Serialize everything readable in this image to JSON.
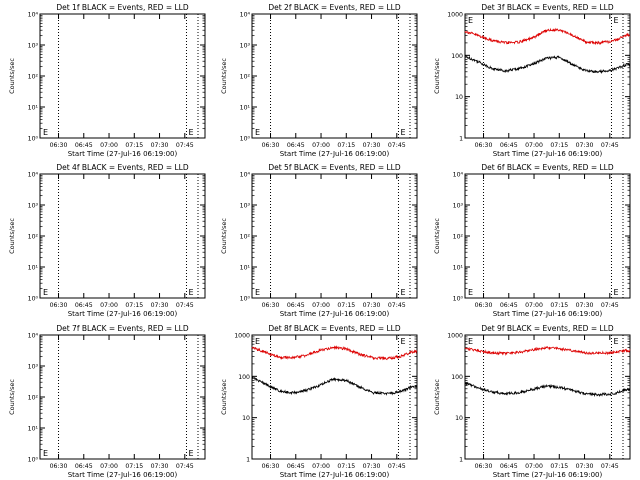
{
  "figure": {
    "background": "#ffffff",
    "colors": {
      "events": "#000000",
      "lld": "#dd0000",
      "axes": "#000000"
    }
  },
  "shared": {
    "xlabel": "Start Time (27-Jul-16 06:19:00)",
    "ylabel": "Counts/sec",
    "x_tick_labels": [
      "06:30",
      "06:45",
      "07:00",
      "07:15",
      "07:30",
      "07:45"
    ],
    "x_tick_values_min": [
      11,
      26,
      41,
      56,
      71,
      86
    ],
    "xlim_min": [
      0,
      98
    ],
    "dotted_lines_min": [
      11,
      87
    ],
    "letter_marker": "E",
    "scale_small": {
      "ylim": [
        1,
        10000
      ],
      "ticks": [
        1,
        10,
        100,
        1000,
        10000
      ],
      "labels": [
        "10⁰",
        "10¹",
        "10²",
        "10³",
        "10⁴"
      ]
    },
    "scale_large": {
      "ylim": [
        1,
        1000
      ],
      "ticks": [
        1,
        10,
        100,
        1000
      ],
      "labels": [
        "1",
        "10",
        "100",
        "1000"
      ]
    }
  },
  "chart_data": [
    {
      "type": "line",
      "title": "Det 1f BLACK = Events, RED = LLD",
      "yscale": "log",
      "series": []
    },
    {
      "type": "line",
      "title": "Det 2f BLACK = Events, RED = LLD",
      "yscale": "log",
      "series": []
    },
    {
      "type": "line",
      "title": "Det 3f BLACK = Events, RED = LLD",
      "yscale": "log",
      "ylim": [
        1,
        1000
      ],
      "x_min": [
        0,
        8,
        16,
        24,
        32,
        40,
        48,
        56,
        64,
        72,
        80,
        88,
        96
      ],
      "series": [
        {
          "key": "events",
          "values": [
            95,
            70,
            48,
            42,
            48,
            60,
            85,
            90,
            60,
            42,
            40,
            45,
            60
          ]
        },
        {
          "key": "lld",
          "values": [
            380,
            300,
            230,
            200,
            210,
            260,
            400,
            420,
            300,
            210,
            200,
            220,
            310
          ]
        }
      ]
    },
    {
      "type": "line",
      "title": "Det 4f BLACK = Events, RED = LLD",
      "yscale": "log",
      "series": []
    },
    {
      "type": "line",
      "title": "Det 5f BLACK = Events, RED = LLD",
      "yscale": "log",
      "series": []
    },
    {
      "type": "line",
      "title": "Det 6f BLACK = Events, RED = LLD",
      "yscale": "log",
      "series": []
    },
    {
      "type": "line",
      "title": "Det 7f BLACK = Events, RED = LLD",
      "yscale": "log",
      "series": []
    },
    {
      "type": "line",
      "title": "Det 8f BLACK = Events, RED = LLD",
      "yscale": "log",
      "ylim": [
        1,
        1000
      ],
      "x_min": [
        0,
        8,
        16,
        24,
        32,
        40,
        48,
        56,
        64,
        72,
        80,
        88,
        96
      ],
      "series": [
        {
          "key": "events",
          "values": [
            95,
            65,
            45,
            40,
            45,
            60,
            85,
            80,
            55,
            40,
            38,
            42,
            58
          ]
        },
        {
          "key": "lld",
          "values": [
            500,
            380,
            290,
            280,
            320,
            420,
            500,
            460,
            340,
            280,
            270,
            300,
            400
          ]
        }
      ]
    },
    {
      "type": "line",
      "title": "Det 9f BLACK = Events, RED = LLD",
      "yscale": "log",
      "ylim": [
        1,
        1000
      ],
      "x_min": [
        0,
        8,
        16,
        24,
        32,
        40,
        48,
        56,
        64,
        72,
        80,
        88,
        96
      ],
      "series": [
        {
          "key": "events",
          "values": [
            70,
            52,
            42,
            38,
            40,
            48,
            58,
            55,
            45,
            38,
            36,
            38,
            48
          ]
        },
        {
          "key": "lld",
          "values": [
            480,
            420,
            370,
            360,
            380,
            440,
            490,
            470,
            410,
            370,
            360,
            380,
            420
          ]
        }
      ]
    }
  ]
}
